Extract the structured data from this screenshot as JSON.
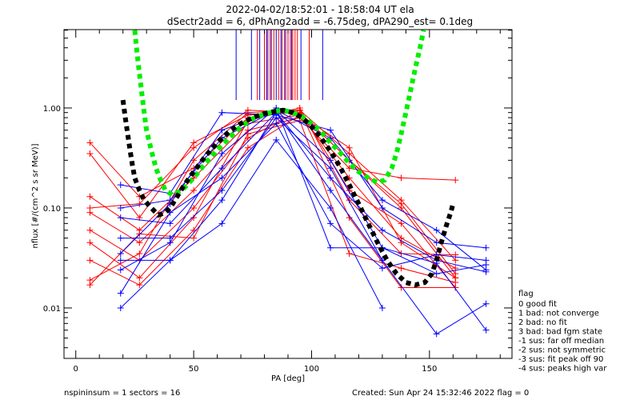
{
  "chart_data": {
    "type": "line",
    "title": "2022-04-02/18:52:01 - 18:58:04 UT ela",
    "subtitle": "dSectr2add = 6, dPhAng2add = -6.75deg, dPA290_est=   0.1deg",
    "xlabel": "PA [deg]",
    "ylabel": "nflux [#/(cm^2 s sr MeV)]",
    "xlim": [
      -5,
      185
    ],
    "ylim": [
      0.00313,
      6.08
    ],
    "yscale": "log",
    "xticks": [
      0,
      50,
      100,
      150
    ],
    "xtick_labels": [
      "0",
      "50",
      "100",
      "150"
    ],
    "yticks": [
      1.0,
      0.1,
      0.01
    ],
    "ytick_labels": [
      "1.00",
      "0.10",
      "0.01"
    ],
    "grid": false,
    "colors": {
      "red": "#ff0000",
      "blue": "#0000ff",
      "black": "#000000",
      "green": "#00ee00"
    },
    "red_series": [
      {
        "x": [
          6,
          27,
          50,
          73,
          95,
          116,
          138,
          161
        ],
        "y": [
          0.45,
          0.13,
          0.25,
          0.8,
          0.95,
          0.35,
          0.12,
          0.03
        ]
      },
      {
        "x": [
          6,
          27,
          50,
          73,
          95,
          116,
          138,
          161
        ],
        "y": [
          0.35,
          0.08,
          0.45,
          0.85,
          0.9,
          0.3,
          0.1,
          0.02
        ]
      },
      {
        "x": [
          6,
          27,
          50,
          73,
          95,
          116,
          138,
          161
        ],
        "y": [
          0.13,
          0.06,
          0.2,
          0.7,
          0.85,
          0.2,
          0.05,
          0.025
        ]
      },
      {
        "x": [
          6,
          27,
          50,
          73,
          95,
          116,
          138,
          161
        ],
        "y": [
          0.09,
          0.045,
          0.15,
          0.6,
          0.8,
          0.25,
          0.2,
          0.19
        ]
      },
      {
        "x": [
          6,
          27,
          50,
          73,
          95,
          116,
          138,
          161
        ],
        "y": [
          0.06,
          0.03,
          0.1,
          0.5,
          0.95,
          0.15,
          0.07,
          0.016
        ]
      },
      {
        "x": [
          6,
          27,
          50,
          73,
          95,
          116,
          138,
          161
        ],
        "y": [
          0.045,
          0.02,
          0.08,
          0.75,
          1.0,
          0.12,
          0.035,
          0.034
        ]
      },
      {
        "x": [
          6,
          27,
          50,
          73,
          95,
          116,
          138,
          161
        ],
        "y": [
          0.03,
          0.017,
          0.06,
          0.4,
          0.85,
          0.4,
          0.045,
          0.02
        ]
      },
      {
        "x": [
          6,
          27,
          50,
          73,
          95,
          116,
          138,
          161
        ],
        "y": [
          0.019,
          0.035,
          0.3,
          0.9,
          0.95,
          0.08,
          0.016,
          0.016
        ]
      },
      {
        "x": [
          6,
          27,
          50,
          73,
          95,
          116,
          138,
          161
        ],
        "y": [
          0.017,
          0.055,
          0.05,
          0.55,
          0.75,
          0.035,
          0.025,
          0.018
        ]
      },
      {
        "x": [
          6,
          27,
          50,
          73,
          95,
          116,
          138,
          161
        ],
        "y": [
          0.1,
          0.11,
          0.4,
          0.95,
          0.9,
          0.3,
          0.11,
          0.022
        ]
      }
    ],
    "blue_series": [
      {
        "x": [
          19,
          40,
          62,
          85,
          108,
          130,
          153,
          174
        ],
        "y": [
          0.17,
          0.14,
          0.9,
          0.85,
          0.6,
          0.1,
          0.045,
          0.04
        ]
      },
      {
        "x": [
          19,
          40,
          62,
          85,
          108,
          130,
          153,
          174
        ],
        "y": [
          0.1,
          0.12,
          0.5,
          0.95,
          0.3,
          0.04,
          0.022,
          0.027
        ]
      },
      {
        "x": [
          19,
          40,
          62,
          85,
          108,
          130,
          153,
          174
        ],
        "y": [
          0.08,
          0.07,
          0.25,
          0.9,
          0.2,
          0.06,
          0.03,
          0.023
        ]
      },
      {
        "x": [
          19,
          40,
          62,
          85,
          108,
          130,
          153,
          174
        ],
        "y": [
          0.05,
          0.05,
          0.15,
          0.8,
          0.25,
          0.03,
          0.0055,
          0.011
        ]
      },
      {
        "x": [
          19,
          40,
          62,
          85,
          108,
          130
        ],
        "y": [
          0.03,
          0.03,
          0.07,
          0.48,
          0.1,
          0.01
        ]
      },
      {
        "x": [
          19,
          40,
          62,
          85,
          108,
          130,
          153,
          174
        ],
        "y": [
          0.024,
          0.045,
          0.35,
          1.0,
          0.04,
          0.04,
          0.028,
          0.006
        ]
      },
      {
        "x": [
          19,
          40,
          62,
          85,
          108,
          130,
          153,
          174
        ],
        "y": [
          0.014,
          0.09,
          0.2,
          0.7,
          0.07,
          0.025,
          0.034,
          0.03
        ]
      },
      {
        "x": [
          19,
          40,
          62,
          85,
          108,
          130
        ],
        "y": [
          0.01,
          0.03,
          0.12,
          0.9,
          0.15,
          0.03
        ]
      },
      {
        "x": [
          19,
          40,
          62,
          85,
          108,
          130,
          153,
          174
        ],
        "y": [
          0.035,
          0.11,
          0.6,
          0.95,
          0.5,
          0.12,
          0.06,
          0.024
        ]
      }
    ],
    "red_peak_lines": [
      77,
      80,
      81.5,
      83,
      84,
      86,
      87.5,
      88.5,
      90,
      91,
      92,
      93,
      94,
      99
    ],
    "blue_peak_lines": [
      68,
      74.5,
      78,
      81,
      82.5,
      85,
      87,
      89,
      91.5,
      95.5,
      104.7
    ],
    "peak_line_range": [
      1.2,
      6.08
    ],
    "black_fit": [
      [
        20,
        1.2
      ],
      [
        21,
        0.8
      ],
      [
        22,
        0.55
      ],
      [
        23,
        0.38
      ],
      [
        24,
        0.27
      ],
      [
        25,
        0.2
      ],
      [
        27,
        0.15
      ],
      [
        29,
        0.12
      ],
      [
        32,
        0.1
      ],
      [
        35,
        0.085
      ],
      [
        38,
        0.09
      ],
      [
        40,
        0.1
      ],
      [
        43,
        0.13
      ],
      [
        46,
        0.17
      ],
      [
        50,
        0.23
      ],
      [
        55,
        0.33
      ],
      [
        60,
        0.45
      ],
      [
        65,
        0.58
      ],
      [
        70,
        0.7
      ],
      [
        75,
        0.8
      ],
      [
        80,
        0.88
      ],
      [
        85,
        0.93
      ],
      [
        88,
        0.95
      ],
      [
        92,
        0.9
      ],
      [
        96,
        0.8
      ],
      [
        100,
        0.65
      ],
      [
        104,
        0.5
      ],
      [
        108,
        0.37
      ],
      [
        112,
        0.26
      ],
      [
        116,
        0.17
      ],
      [
        120,
        0.11
      ],
      [
        124,
        0.07
      ],
      [
        128,
        0.045
      ],
      [
        132,
        0.03
      ],
      [
        136,
        0.022
      ],
      [
        140,
        0.018
      ],
      [
        144,
        0.017
      ],
      [
        148,
        0.018
      ],
      [
        151,
        0.022
      ],
      [
        153,
        0.03
      ],
      [
        155,
        0.045
      ],
      [
        157,
        0.065
      ],
      [
        159,
        0.09
      ],
      [
        160,
        0.11
      ]
    ],
    "green_fit": [
      [
        25,
        6
      ],
      [
        26,
        3.5
      ],
      [
        27,
        2.2
      ],
      [
        28,
        1.4
      ],
      [
        29,
        0.9
      ],
      [
        30,
        0.6
      ],
      [
        32,
        0.38
      ],
      [
        34,
        0.25
      ],
      [
        36,
        0.19
      ],
      [
        38,
        0.15
      ],
      [
        41,
        0.135
      ],
      [
        45,
        0.15
      ],
      [
        50,
        0.2
      ],
      [
        55,
        0.28
      ],
      [
        60,
        0.38
      ],
      [
        65,
        0.5
      ],
      [
        70,
        0.65
      ],
      [
        75,
        0.78
      ],
      [
        80,
        0.87
      ],
      [
        85,
        0.93
      ],
      [
        88,
        0.95
      ],
      [
        92,
        0.9
      ],
      [
        96,
        0.82
      ],
      [
        100,
        0.7
      ],
      [
        104,
        0.58
      ],
      [
        108,
        0.45
      ],
      [
        112,
        0.36
      ],
      [
        116,
        0.28
      ],
      [
        120,
        0.23
      ],
      [
        124,
        0.2
      ],
      [
        128,
        0.18
      ],
      [
        131,
        0.19
      ],
      [
        134,
        0.25
      ],
      [
        136,
        0.35
      ],
      [
        138,
        0.55
      ],
      [
        140,
        0.9
      ],
      [
        142,
        1.5
      ],
      [
        144,
        2.5
      ],
      [
        146,
        4
      ],
      [
        147.5,
        6
      ]
    ],
    "legend": {
      "title": "flag",
      "entries": [
        " 0 good fit",
        " 1 bad: not converge",
        " 2 bad: no fit",
        " 3 bad: bad fgm state",
        "-1 sus: far off median",
        "-2 sus: not symmetric",
        "-3 sus: fit peak off 90",
        "-4 sus: peaks high var"
      ]
    },
    "footer_left": "nspininsum =  1  sectors = 16",
    "footer_right": "Created: Sun Apr 24 15:32:46 2022   flag = 0"
  }
}
